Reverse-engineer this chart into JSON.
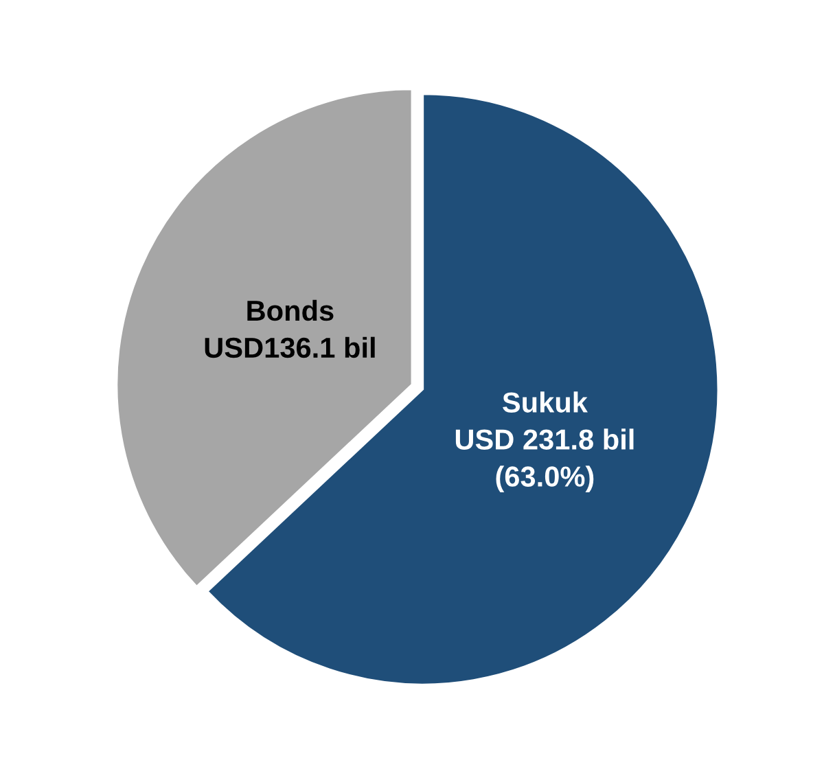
{
  "chart_data": {
    "type": "pie",
    "categories": [
      "Sukuk",
      "Bonds"
    ],
    "values": [
      231.8,
      136.1
    ],
    "colors": [
      "#1f4e79",
      "#a6a6a6"
    ],
    "value_labels": [
      "USD 231.8 bil\n(63.0%)",
      "USD136.1 bil"
    ],
    "legend": false
  }
}
